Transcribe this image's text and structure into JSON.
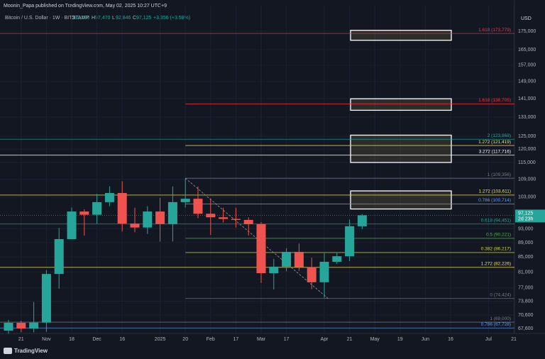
{
  "chart_data": {
    "type": "candlestick",
    "header": "Moonin_Papa published on TradingView.com, May 02, 2025 10:27 UTC+9",
    "symbol": "Bitcoin / U.S. Dollar · 1W · BITSTAMP",
    "ohlc_legend": [
      {
        "key": "O",
        "value": "93,780"
      },
      {
        "key": "H",
        "value": "97,470"
      },
      {
        "key": "L",
        "value": "92,846"
      },
      {
        "key": "C",
        "value": "97,125"
      }
    ],
    "change": "+3,356 (+3.58%)",
    "currency": "USD",
    "brand": "TradingView",
    "log_scale": true,
    "ylim": [
      66550,
      189900
    ],
    "yticks": [
      {
        "value": 175000,
        "label": "175,000"
      },
      {
        "value": 165000,
        "label": "165,000"
      },
      {
        "value": 157000,
        "label": "157,000"
      },
      {
        "value": 149000,
        "label": "149,000"
      },
      {
        "value": 141000,
        "label": "141,000"
      },
      {
        "value": 133000,
        "label": "133,000"
      },
      {
        "value": 125000,
        "label": "125,000"
      },
      {
        "value": 120000,
        "label": "120,000"
      },
      {
        "value": 115000,
        "label": "115,000"
      },
      {
        "value": 109000,
        "label": "109,000"
      },
      {
        "value": 103000,
        "label": "103,000"
      },
      {
        "value": 93000,
        "label": "93,000"
      },
      {
        "value": 89000,
        "label": "89,000"
      },
      {
        "value": 85000,
        "label": "85,000"
      },
      {
        "value": 81000,
        "label": "81,000"
      },
      {
        "value": 77000,
        "label": "77,000"
      },
      {
        "value": 73800,
        "label": "73,800"
      },
      {
        "value": 70600,
        "label": "70,600"
      },
      {
        "value": 67600,
        "label": "67,600"
      }
    ],
    "categories": [
      null,
      "21",
      null,
      "Nov",
      null,
      "18",
      null,
      "Dec",
      null,
      "16",
      null,
      null,
      "2025",
      null,
      "20",
      null,
      "Feb",
      null,
      "17",
      null,
      "Mar",
      null,
      "17",
      null,
      null,
      "Apr",
      null,
      "21",
      null,
      "May",
      null,
      "19",
      null,
      "Jun",
      null,
      "16",
      null,
      null,
      "Jul",
      null,
      "21"
    ],
    "open": [
      67150,
      68860,
      67600,
      68900,
      80500,
      90000,
      98300,
      97300,
      101300,
      104300,
      94600,
      93400,
      98300,
      94500,
      101300,
      102400,
      97600,
      96500,
      96000,
      95700,
      94400,
      80700,
      82400,
      86400,
      82300,
      78400,
      83700,
      85200,
      93780,
      null,
      null,
      null,
      null,
      null,
      null,
      null,
      null,
      null,
      null,
      null,
      null
    ],
    "high": [
      69500,
      69300,
      73600,
      81500,
      93300,
      99600,
      99000,
      104000,
      106600,
      108300,
      99500,
      100000,
      102700,
      106500,
      109300,
      106500,
      102500,
      99500,
      99500,
      96500,
      95000,
      84500,
      87400,
      88700,
      84800,
      86000,
      86300,
      95800,
      97470,
      null,
      null,
      null,
      null,
      null,
      null,
      null,
      null,
      null,
      null,
      null,
      null
    ],
    "low": [
      66500,
      66800,
      66800,
      66900,
      76800,
      90700,
      91000,
      94600,
      100000,
      92200,
      92000,
      91500,
      89300,
      89300,
      99600,
      96200,
      91200,
      94900,
      93400,
      91000,
      78200,
      76600,
      81200,
      81300,
      76700,
      74600,
      83100,
      83900,
      92846,
      null,
      null,
      null,
      null,
      null,
      null,
      null,
      null,
      null,
      null,
      null,
      null
    ],
    "close": [
      68860,
      67600,
      68900,
      80500,
      90000,
      98300,
      97300,
      101300,
      104300,
      94600,
      93400,
      98300,
      94500,
      101300,
      102400,
      97600,
      96500,
      96000,
      95700,
      94400,
      80700,
      82400,
      86400,
      82300,
      78400,
      83700,
      85200,
      93780,
      97125,
      null,
      null,
      null,
      null,
      null,
      null,
      null,
      null,
      null,
      null,
      null,
      null
    ],
    "up_color": "#26a69a",
    "down_color": "#ef5350",
    "price_tag": {
      "value": 97125,
      "label": "97,125",
      "countdown": "2d 23h"
    },
    "levels": [
      {
        "value": 173779,
        "label": "1.618 (173,779)",
        "color": "#f23645"
      },
      {
        "value": 138705,
        "label": "1.618 (138,705)",
        "color": "#f23645"
      },
      {
        "value": 123868,
        "label": "2 (123,868)",
        "color": "#26a69a"
      },
      {
        "value": 121419,
        "label": "1.272 (121,419)",
        "color": "#f5e663"
      },
      {
        "value": 117716,
        "label": "3.272 (117,716)",
        "color": "#ffffff"
      },
      {
        "value": 109356,
        "label": "1 (109,356)",
        "color": "#787b86"
      },
      {
        "value": 103611,
        "label": "1.272 (103,611)",
        "color": "#f5e663"
      },
      {
        "value": 100714,
        "label": "0.786 (100,714)",
        "color": "#5b9cf6"
      },
      {
        "value": 94451,
        "label": "0.618 (94,451)",
        "color": "#26a69a"
      },
      {
        "value": 90221,
        "label": "0.5 (90,221)",
        "color": "#4caf50"
      },
      {
        "value": 86217,
        "label": "0.382 (86,217)",
        "color": "#cddc39"
      },
      {
        "value": 82226,
        "label": "1.272 (82,226)",
        "color": "#f5e663"
      },
      {
        "value": 74424,
        "label": "0 (74,424)",
        "color": "#787b86"
      },
      {
        "value": 69000,
        "label": "1 (69,000)",
        "color": "#787b86"
      },
      {
        "value": 67728,
        "label": "0.786 (67,728)",
        "color": "#5b9cf6"
      }
    ],
    "zones": [
      [
        175500,
        170000
      ],
      [
        141000,
        135900
      ],
      [
        125500,
        115000
      ],
      [
        105000,
        99100
      ]
    ],
    "trendline": [
      109356,
      74424
    ]
  }
}
